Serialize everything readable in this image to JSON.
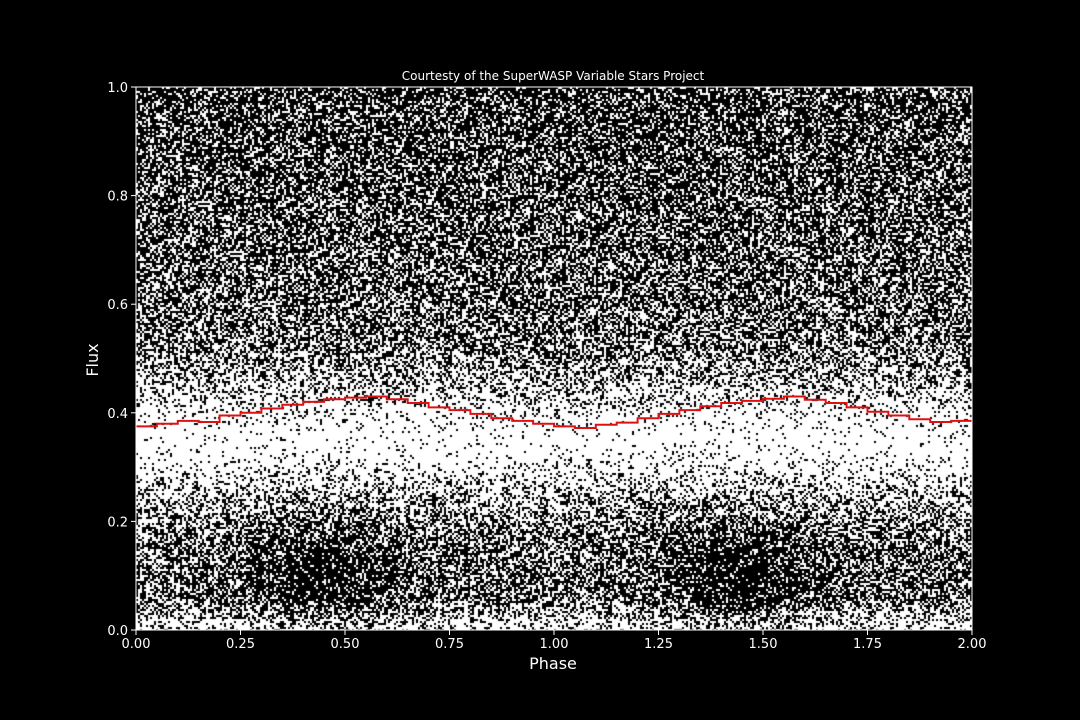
{
  "chart_data": {
    "type": "scatter",
    "title": "Courtesty of the SuperWASP Variable Stars Project",
    "xlabel": "Phase",
    "ylabel": "Flux",
    "xlim": [
      0,
      2
    ],
    "ylim": [
      0,
      1
    ],
    "x_ticks": [
      "0.00",
      "0.25",
      "0.50",
      "0.75",
      "1.00",
      "1.25",
      "1.50",
      "1.75",
      "2.00"
    ],
    "y_ticks": [
      "0.0",
      "0.2",
      "0.4",
      "0.6",
      "0.8",
      "1.0"
    ],
    "grid": false,
    "legend": "none",
    "colors": {
      "background": "#000000",
      "points": "#ffffff",
      "binned_curve": "#dd1111",
      "axes": "#ffffff",
      "text": "#ffffff"
    },
    "series": [
      {
        "kind": "scatter",
        "description_of_distribution": "dense white points filling the plot, concentrated in a band around flux 0.25-0.45 and near 0.0-0.1, with two sparser dark lobes near phase 0.5 and 1.5 below flux 0.3 and a sparser region above 0.6"
      },
      {
        "kind": "binned-step",
        "phase": [
          0.0,
          0.05,
          0.1,
          0.15,
          0.2,
          0.25,
          0.3,
          0.35,
          0.4,
          0.45,
          0.5,
          0.55,
          0.6,
          0.65,
          0.7,
          0.75,
          0.8,
          0.85,
          0.9,
          0.95,
          1.0,
          1.05,
          1.1,
          1.15,
          1.2,
          1.25,
          1.3,
          1.35,
          1.4,
          1.45,
          1.5,
          1.55,
          1.6,
          1.65,
          1.7,
          1.75,
          1.8,
          1.85,
          1.9,
          1.95,
          2.0
        ],
        "flux": [
          0.375,
          0.38,
          0.385,
          0.383,
          0.395,
          0.4,
          0.408,
          0.415,
          0.42,
          0.425,
          0.428,
          0.43,
          0.425,
          0.418,
          0.41,
          0.405,
          0.398,
          0.39,
          0.385,
          0.38,
          0.375,
          0.372,
          0.378,
          0.382,
          0.39,
          0.398,
          0.405,
          0.412,
          0.418,
          0.422,
          0.426,
          0.43,
          0.424,
          0.418,
          0.41,
          0.402,
          0.395,
          0.388,
          0.383,
          0.385,
          0.39
        ]
      }
    ]
  }
}
